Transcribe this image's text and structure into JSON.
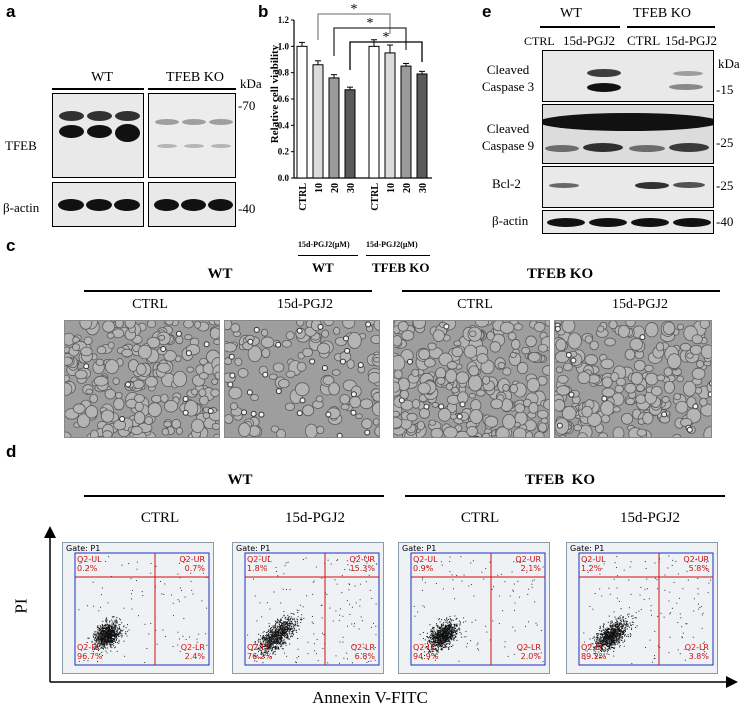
{
  "panels": {
    "a": {
      "label": "a",
      "groups": [
        "WT",
        "TFEB KO"
      ],
      "unit": "kDa",
      "rows": [
        {
          "protein": "TFEB",
          "marker": "-70"
        },
        {
          "protein": "β-actin",
          "marker": "-40"
        }
      ]
    },
    "b": {
      "label": "b",
      "ylabel": "Relative cell viability",
      "treatment_label_1": "15d-PGJ2(μM)",
      "treatment_label_2": "15d-PGJ2(μM)",
      "group_1": "WT",
      "group_2": "TFEB KO",
      "significance": "*"
    },
    "c": {
      "label": "c",
      "groups": [
        "WT",
        "TFEB KO"
      ],
      "conditions": [
        "CTRL",
        "15d-PGJ2",
        "CTRL",
        "15d-PGJ2"
      ]
    },
    "d": {
      "label": "d",
      "groups": [
        "WT",
        "TFEB  KO"
      ],
      "conditions": [
        "CTRL",
        "15d-PGJ2",
        "CTRL",
        "15d-PGJ2"
      ],
      "ylabel": "PI",
      "xlabel": "Annexin V-FITC",
      "gate": "Gate: P1",
      "plots": [
        {
          "ul": "Q2-UL\n0.2%",
          "ur": "Q2-UR\n0.7%",
          "ll": "Q2-LL\n96.7%",
          "lr": "Q2-LR\n2.4%"
        },
        {
          "ul": "Q2-UL\n1.8%",
          "ur": "Q2-UR\n15.3%",
          "ll": "Q2-LL\n76.2%",
          "lr": "Q2-LR\n6.8%"
        },
        {
          "ul": "Q2-UL\n0.9%",
          "ur": "Q2-UR\n2.1%",
          "ll": "Q2-LL\n94.9%",
          "lr": "Q2-LR\n2.0%"
        },
        {
          "ul": "Q2-UL\n1.2%",
          "ur": "Q2-UR\n5.8%",
          "ll": "Q2-LL\n89.2%",
          "lr": "Q2-LR\n3.8%"
        }
      ],
      "x_ticks": [
        "10^2.6",
        "10^3",
        "10^4",
        "10^4.6"
      ],
      "y_ticks": [
        "10^1.7",
        "10^2",
        "10^3",
        "10^4.1"
      ]
    },
    "e": {
      "label": "e",
      "groups": [
        "WT",
        "TFEB KO"
      ],
      "conditions": [
        "CTRL",
        "15d-PGJ2",
        "CTRL",
        "15d-PGJ2"
      ],
      "unit": "kDa",
      "rows": [
        {
          "protein": "Cleaved\nCaspase 3",
          "marker": "-15"
        },
        {
          "protein": "Cleaved\nCaspase 9",
          "marker": "-25"
        },
        {
          "protein": "Bcl-2",
          "marker": "-25"
        },
        {
          "protein": "β-actin",
          "marker": "-40"
        }
      ]
    }
  },
  "chart_data": {
    "type": "bar",
    "ylabel": "Relative cell viability",
    "categories": [
      "CTRL",
      "10",
      "20",
      "30",
      "CTRL",
      "10",
      "20",
      "30"
    ],
    "values": [
      1.0,
      0.86,
      0.76,
      0.67,
      1.0,
      0.95,
      0.85,
      0.79
    ],
    "errors": [
      0.03,
      0.03,
      0.025,
      0.02,
      0.05,
      0.06,
      0.02,
      0.02
    ],
    "bar_colors": [
      "#ffffff",
      "#dcdcdc",
      "#9a9a9a",
      "#5a5a5a",
      "#ffffff",
      "#dcdcdc",
      "#9a9a9a",
      "#5a5a5a"
    ],
    "ylim": [
      0.0,
      1.2
    ],
    "yticks": [
      0.0,
      0.2,
      0.4,
      0.6,
      0.8,
      1.0,
      1.2
    ]
  }
}
